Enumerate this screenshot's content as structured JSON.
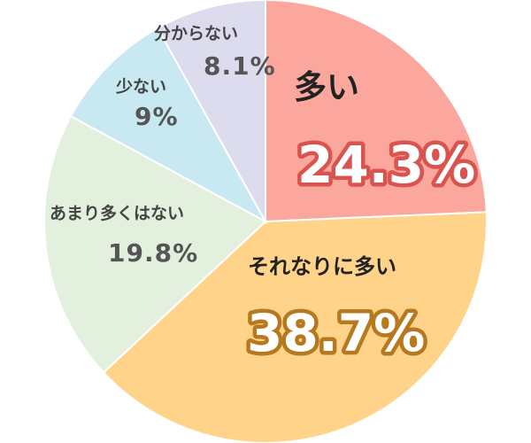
{
  "chart_data": {
    "type": "pie",
    "title": "",
    "start_angle_deg": 0,
    "direction": "clockwise",
    "slices": [
      {
        "label": "多い",
        "value": 24.3,
        "value_text": "24.3%",
        "color": "#fca79e",
        "value_outline": "#d9534f"
      },
      {
        "label": "それなりに多い",
        "value": 38.7,
        "value_text": "38.7%",
        "color": "#ffd38a",
        "value_outline": "#b7791f"
      },
      {
        "label": "あまり多くはない",
        "value": 19.8,
        "value_text": "19.8%",
        "color": "#e3f0de"
      },
      {
        "label": "少ない",
        "value": 9,
        "value_text": "9%",
        "color": "#c9e9f2"
      },
      {
        "label": "分からない",
        "value": 8.1,
        "value_text": "8.1%",
        "color": "#dcdcee"
      }
    ]
  }
}
